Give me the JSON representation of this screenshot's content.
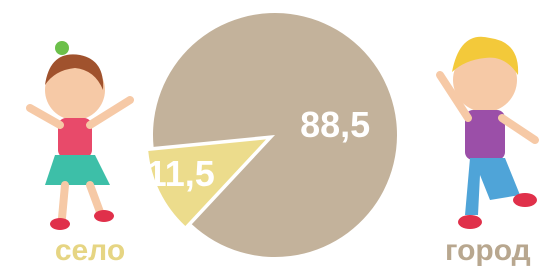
{
  "chart_data": {
    "type": "pie",
    "categories": [
      "село",
      "город"
    ],
    "values": [
      11.5,
      88.5
    ],
    "value_labels": [
      "11,5",
      "88,5"
    ],
    "colors": [
      "#ecdc8c",
      "#c3b29b"
    ]
  }
}
